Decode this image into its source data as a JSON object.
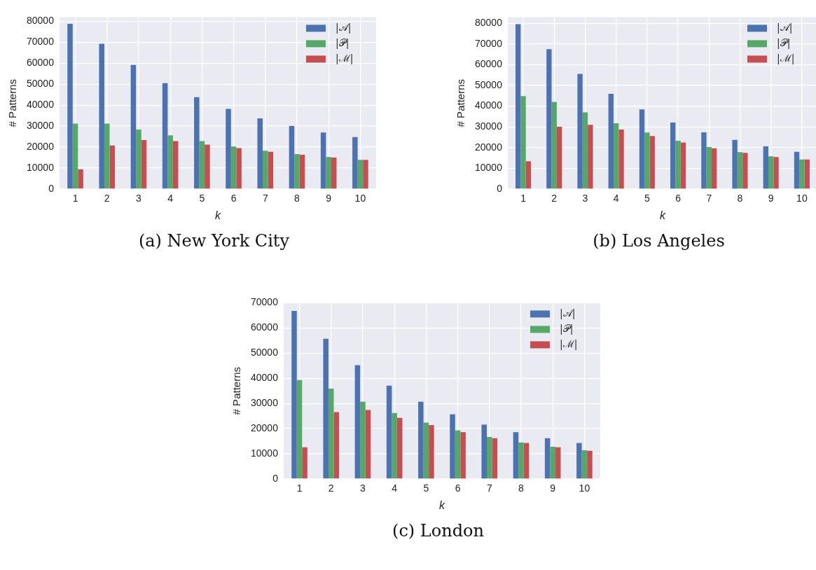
{
  "chart_data": [
    {
      "type": "bar",
      "title": "(a) New York City",
      "xlabel": "k",
      "ylabel": "# Patterns",
      "categories": [
        "1",
        "2",
        "3",
        "4",
        "5",
        "6",
        "7",
        "8",
        "9",
        "10"
      ],
      "ylim": [
        0,
        82000
      ],
      "yticks": [
        0,
        10000,
        20000,
        30000,
        40000,
        50000,
        60000,
        70000,
        80000
      ],
      "grid": true,
      "legend": "top right",
      "series": [
        {
          "name": "|𝒜|",
          "color": "#4c72b0",
          "values": [
            78800,
            69300,
            59200,
            50500,
            43800,
            38200,
            33700,
            30100,
            27000,
            24800
          ]
        },
        {
          "name": "|𝒫|",
          "color": "#55a868",
          "values": [
            31200,
            31200,
            28400,
            25600,
            22900,
            20300,
            18300,
            16700,
            15300,
            13900
          ]
        },
        {
          "name": "|ℳ|",
          "color": "#c44e52",
          "values": [
            9400,
            20800,
            23400,
            22900,
            21200,
            19500,
            17800,
            16400,
            15000,
            13900
          ]
        }
      ]
    },
    {
      "type": "bar",
      "title": "(b) Los Angeles",
      "xlabel": "k",
      "ylabel": "# Patterns",
      "categories": [
        "1",
        "2",
        "3",
        "4",
        "5",
        "6",
        "7",
        "8",
        "9",
        "10"
      ],
      "ylim": [
        0,
        83000
      ],
      "yticks": [
        0,
        10000,
        20000,
        30000,
        40000,
        50000,
        60000,
        70000,
        80000
      ],
      "grid": true,
      "legend": "top right",
      "series": [
        {
          "name": "|𝒜|",
          "color": "#4c72b0",
          "values": [
            79600,
            67500,
            55600,
            46000,
            38400,
            32100,
            27400,
            23700,
            20600,
            18000
          ]
        },
        {
          "name": "|𝒫|",
          "color": "#55a868",
          "values": [
            44900,
            42100,
            37000,
            31800,
            27300,
            23300,
            20300,
            17800,
            15800,
            14300
          ]
        },
        {
          "name": "|ℳ|",
          "color": "#c44e52",
          "values": [
            13400,
            30100,
            31000,
            28700,
            25600,
            22500,
            19700,
            17500,
            15500,
            14300
          ]
        }
      ]
    },
    {
      "type": "bar",
      "title": "(c) London",
      "xlabel": "k",
      "ylabel": "# Patterns",
      "categories": [
        "1",
        "2",
        "3",
        "4",
        "5",
        "6",
        "7",
        "8",
        "9",
        "10"
      ],
      "ylim": [
        0,
        70000
      ],
      "yticks": [
        0,
        10000,
        20000,
        30000,
        40000,
        50000,
        60000,
        70000
      ],
      "grid": true,
      "legend": "top right",
      "series": [
        {
          "name": "|𝒜|",
          "color": "#4c72b0",
          "values": [
            66800,
            55700,
            45200,
            37100,
            30700,
            25700,
            21600,
            18600,
            16200,
            14300
          ]
        },
        {
          "name": "|𝒫|",
          "color": "#55a868",
          "values": [
            39300,
            35900,
            30700,
            26200,
            22400,
            19300,
            16700,
            14500,
            12800,
            11400
          ]
        },
        {
          "name": "|ℳ|",
          "color": "#c44e52",
          "values": [
            12600,
            26600,
            27400,
            24300,
            21400,
            18600,
            16200,
            14300,
            12600,
            11200
          ]
        }
      ]
    }
  ]
}
